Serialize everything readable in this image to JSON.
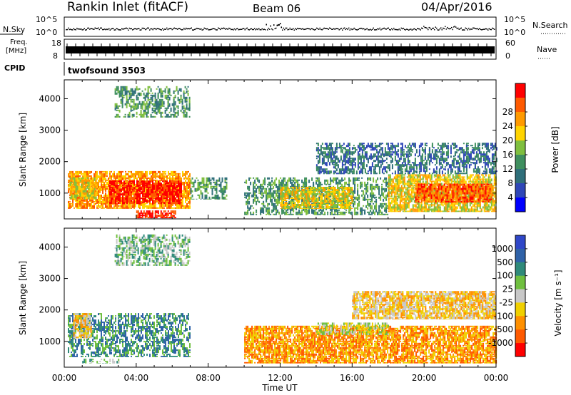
{
  "header": {
    "station": "Rankin Inlet (fitACF)",
    "beam": "Beam 06",
    "date": "04/Apr/2016"
  },
  "strips": {
    "nsky_label": "N.Sky",
    "nsky_tick_top": "10^5",
    "nsky_tick_bottom": "10^0",
    "nsearch_label": "N.Search",
    "freq_label_top": "Freq.",
    "freq_label_bottom": "[MHz]",
    "freq_tick_top": "18",
    "freq_tick_bottom": "8",
    "nave_label": "Nave",
    "nave_tick_top": "60",
    "nave_tick_bottom": "0",
    "cpid_label": "CPID",
    "cpid_value": "twofsound  3503"
  },
  "colors": {
    "power_scale": [
      "#0000ff",
      "#2f47b8",
      "#2f6f7a",
      "#3f8f5f",
      "#7fbf3f",
      "#ffd400",
      "#ff9a00",
      "#ff5a00",
      "#ff0000"
    ],
    "velocity_scale": [
      "#2f47c8",
      "#2f62a8",
      "#2f8a7a",
      "#6fbf3f",
      "#c8c8c8",
      "#f0d000",
      "#ff9000",
      "#ff5a00",
      "#ff0000"
    ]
  },
  "chart_data": [
    {
      "type": "heatmap",
      "panel": "power",
      "ylabel": "Slant Range [km]",
      "xlabel": "Time UT",
      "x_ticks": [
        "00:00",
        "04:00",
        "08:00",
        "12:00",
        "16:00",
        "20:00",
        "00:00"
      ],
      "y_ticks": [
        "1000",
        "2000",
        "3000",
        "4000"
      ],
      "xlim_hours": [
        0,
        24
      ],
      "ylim_km": [
        180,
        4600
      ],
      "colorbar_label": "Power [dB]",
      "colorbar_ticks": [
        "4",
        "8",
        "12",
        "16",
        "20",
        "24",
        "28"
      ],
      "regions": [
        {
          "t0": 0.2,
          "t1": 7.0,
          "r0": 500,
          "r1": 1700,
          "level": 6
        },
        {
          "t0": 2.5,
          "t1": 6.5,
          "r0": 650,
          "r1": 1400,
          "level": 8
        },
        {
          "t0": 0.3,
          "t1": 1.8,
          "r0": 800,
          "r1": 1500,
          "level": 5
        },
        {
          "t0": 4.0,
          "t1": 6.2,
          "r0": 200,
          "r1": 450,
          "level": 8
        },
        {
          "t0": 7.0,
          "t1": 9.0,
          "r0": 800,
          "r1": 1500,
          "level": 3
        },
        {
          "t0": 10.0,
          "t1": 18.0,
          "r0": 300,
          "r1": 1500,
          "level": 3
        },
        {
          "t0": 12.0,
          "t1": 16.0,
          "r0": 500,
          "r1": 1200,
          "level": 5
        },
        {
          "t0": 18.0,
          "t1": 24.0,
          "r0": 400,
          "r1": 1600,
          "level": 5
        },
        {
          "t0": 19.5,
          "t1": 23.8,
          "r0": 700,
          "r1": 1300,
          "level": 7
        },
        {
          "t0": 2.8,
          "t1": 7.0,
          "r0": 3400,
          "r1": 4400,
          "level": 3
        },
        {
          "t0": 14.0,
          "t1": 24.0,
          "r0": 1600,
          "r1": 2600,
          "level": 2
        }
      ]
    },
    {
      "type": "heatmap",
      "panel": "velocity",
      "ylabel": "Slant Range [km]",
      "xlabel": "Time UT",
      "x_ticks": [
        "00:00",
        "04:00",
        "08:00",
        "12:00",
        "16:00",
        "20:00",
        "00:00"
      ],
      "y_ticks": [
        "1000",
        "2000",
        "3000",
        "4000"
      ],
      "xlim_hours": [
        0,
        24
      ],
      "ylim_km": [
        180,
        4600
      ],
      "colorbar_label": "Velocity [m s⁻¹]",
      "colorbar_ticks": [
        "1000",
        "500",
        "100",
        "25",
        "-25",
        "-100",
        "-500",
        "-1000"
      ],
      "regions": [
        {
          "t0": 0.2,
          "t1": 7.0,
          "r0": 500,
          "r1": 1900,
          "level": 2
        },
        {
          "t0": 0.5,
          "t1": 1.5,
          "r0": 1100,
          "r1": 1900,
          "level": 5
        },
        {
          "t0": 1.0,
          "t1": 3.0,
          "r0": 300,
          "r1": 450,
          "level": 3
        },
        {
          "t0": 10.0,
          "t1": 24.0,
          "r0": 300,
          "r1": 1500,
          "level": 6
        },
        {
          "t0": 14.0,
          "t1": 18.0,
          "r0": 1200,
          "r1": 1600,
          "level": 4
        },
        {
          "t0": 2.8,
          "t1": 7.0,
          "r0": 3400,
          "r1": 4400,
          "level": 3
        },
        {
          "t0": 16.0,
          "t1": 24.0,
          "r0": 1700,
          "r1": 2600,
          "level": 5
        }
      ]
    }
  ],
  "axes": {
    "time_label": "Time UT",
    "range_label": "Slant Range [km]",
    "power_cbar_label": "Power [dB]",
    "velocity_cbar_label": "Velocity [m s⁻¹]"
  }
}
